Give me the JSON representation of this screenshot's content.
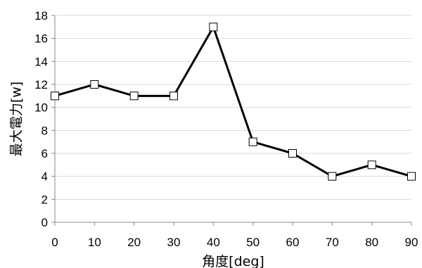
{
  "chart_data": {
    "type": "line",
    "xlabel": "角度[deg]",
    "ylabel": "最大電力[w]",
    "x": [
      0,
      10,
      20,
      30,
      40,
      50,
      60,
      70,
      80,
      90
    ],
    "series": [
      {
        "values": [
          11,
          12,
          11,
          11,
          17,
          7,
          6,
          4,
          5,
          4
        ]
      }
    ],
    "xlim": [
      0,
      90
    ],
    "ylim": [
      0,
      18
    ],
    "x_ticks": [
      0,
      10,
      20,
      30,
      40,
      50,
      60,
      70,
      80,
      90
    ],
    "y_ticks": [
      0,
      2,
      4,
      6,
      8,
      10,
      12,
      14,
      16,
      18
    ],
    "grid": "horizontal",
    "legend": "none",
    "colors": {
      "line": "#000000",
      "marker_fill": "#ffffff",
      "grid": "#d9d9d9"
    },
    "marker": "square"
  }
}
